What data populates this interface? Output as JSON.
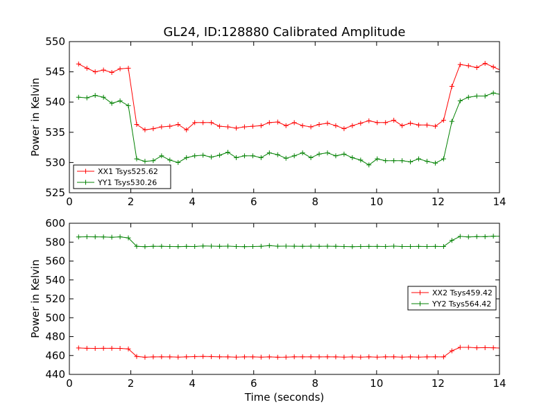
{
  "figure": {
    "title": "GL24, ID:128880 Calibrated Amplitude"
  },
  "chart_data": [
    {
      "type": "line",
      "title": "GL24, ID:128880 Calibrated Amplitude",
      "xlabel": "",
      "ylabel": "Power in Kelvin",
      "xlim": [
        0,
        14
      ],
      "ylim": [
        525,
        550
      ],
      "xticks": [
        0,
        2,
        4,
        6,
        8,
        10,
        12,
        14
      ],
      "yticks": [
        525,
        530,
        535,
        540,
        545,
        550
      ],
      "grid": false,
      "legend_position": "lower-left",
      "marker": "+",
      "x": [
        0.3,
        0.57,
        0.84,
        1.11,
        1.38,
        1.65,
        1.92,
        2.19,
        2.46,
        2.73,
        3.0,
        3.27,
        3.54,
        3.81,
        4.08,
        4.35,
        4.62,
        4.89,
        5.16,
        5.43,
        5.7,
        5.97,
        6.24,
        6.51,
        6.78,
        7.05,
        7.32,
        7.59,
        7.86,
        8.13,
        8.4,
        8.67,
        8.94,
        9.21,
        9.48,
        9.75,
        10.02,
        10.29,
        10.56,
        10.83,
        11.1,
        11.37,
        11.64,
        11.91,
        12.18,
        12.45,
        12.72,
        12.99,
        13.26,
        13.53,
        13.8,
        14.07
      ],
      "series": [
        {
          "name": "XX1 Tsys525.62",
          "color": "#ff0000",
          "values": [
            546.3,
            545.6,
            545.0,
            545.3,
            544.9,
            545.5,
            545.6,
            536.3,
            535.4,
            535.6,
            535.9,
            536.0,
            536.3,
            535.4,
            536.6,
            536.6,
            536.6,
            536.0,
            535.9,
            535.7,
            535.9,
            536.0,
            536.1,
            536.6,
            536.7,
            536.1,
            536.6,
            536.1,
            535.9,
            536.3,
            536.5,
            536.1,
            535.6,
            536.1,
            536.5,
            536.9,
            536.6,
            536.6,
            537.0,
            536.1,
            536.5,
            536.2,
            536.2,
            536.0,
            537.0,
            542.6,
            546.2,
            546.0,
            545.7,
            546.4,
            545.8,
            545.2
          ]
        },
        {
          "name": "YY1 Tsys530.26",
          "color": "#008000",
          "values": [
            540.8,
            540.7,
            541.1,
            540.8,
            539.8,
            540.2,
            539.4,
            530.6,
            530.2,
            530.3,
            531.1,
            530.4,
            530.0,
            530.8,
            531.1,
            531.2,
            530.9,
            531.2,
            531.7,
            530.8,
            531.1,
            531.1,
            530.8,
            531.6,
            531.3,
            530.7,
            531.1,
            531.6,
            530.8,
            531.4,
            531.6,
            531.1,
            531.4,
            530.8,
            530.4,
            529.6,
            530.6,
            530.3,
            530.3,
            530.3,
            530.1,
            530.6,
            530.2,
            529.9,
            530.6,
            536.8,
            540.2,
            540.8,
            541.0,
            541.0,
            541.5,
            541.2
          ]
        }
      ]
    },
    {
      "type": "line",
      "title": "",
      "xlabel": "Time (seconds)",
      "ylabel": "Power in Kelvin",
      "xlim": [
        0,
        14
      ],
      "ylim": [
        440,
        600
      ],
      "xticks": [
        0,
        2,
        4,
        6,
        8,
        10,
        12,
        14
      ],
      "yticks": [
        440,
        460,
        480,
        500,
        520,
        540,
        560,
        580,
        600
      ],
      "grid": false,
      "legend_position": "center-right",
      "marker": "+",
      "x": [
        0.3,
        0.57,
        0.84,
        1.11,
        1.38,
        1.65,
        1.92,
        2.19,
        2.46,
        2.73,
        3.0,
        3.27,
        3.54,
        3.81,
        4.08,
        4.35,
        4.62,
        4.89,
        5.16,
        5.43,
        5.7,
        5.97,
        6.24,
        6.51,
        6.78,
        7.05,
        7.32,
        7.59,
        7.86,
        8.13,
        8.4,
        8.67,
        8.94,
        9.21,
        9.48,
        9.75,
        10.02,
        10.29,
        10.56,
        10.83,
        11.1,
        11.37,
        11.64,
        11.91,
        12.18,
        12.45,
        12.72,
        12.99,
        13.26,
        13.53,
        13.8,
        14.07
      ],
      "series": [
        {
          "name": "XX2 Tsys459.42",
          "color": "#ff0000",
          "values": [
            468.0,
            467.6,
            467.5,
            467.6,
            467.6,
            467.5,
            467.0,
            459.0,
            458.2,
            458.5,
            458.6,
            458.5,
            458.3,
            458.6,
            458.8,
            459.0,
            458.8,
            458.6,
            458.5,
            458.3,
            458.5,
            458.5,
            458.3,
            458.5,
            458.2,
            458.3,
            458.6,
            458.6,
            458.6,
            458.5,
            458.6,
            458.5,
            458.3,
            458.5,
            458.3,
            458.6,
            458.3,
            458.6,
            458.6,
            458.3,
            458.5,
            458.3,
            458.5,
            458.6,
            458.5,
            465.0,
            468.6,
            468.6,
            468.2,
            468.3,
            468.2,
            467.8
          ]
        },
        {
          "name": "YY2 Tsys564.42",
          "color": "#008000",
          "values": [
            585.5,
            585.7,
            585.6,
            585.5,
            585.2,
            585.6,
            584.5,
            575.6,
            575.2,
            575.6,
            575.6,
            575.4,
            575.3,
            575.5,
            575.4,
            575.9,
            575.8,
            575.6,
            575.8,
            575.4,
            575.3,
            575.4,
            575.6,
            576.3,
            575.7,
            575.8,
            575.7,
            575.6,
            575.7,
            575.6,
            575.7,
            575.6,
            575.4,
            575.2,
            575.4,
            575.5,
            575.5,
            575.4,
            575.8,
            575.4,
            575.4,
            575.5,
            575.4,
            575.5,
            575.4,
            581.8,
            586.1,
            585.5,
            585.9,
            585.8,
            586.3,
            586.3
          ]
        }
      ]
    }
  ]
}
